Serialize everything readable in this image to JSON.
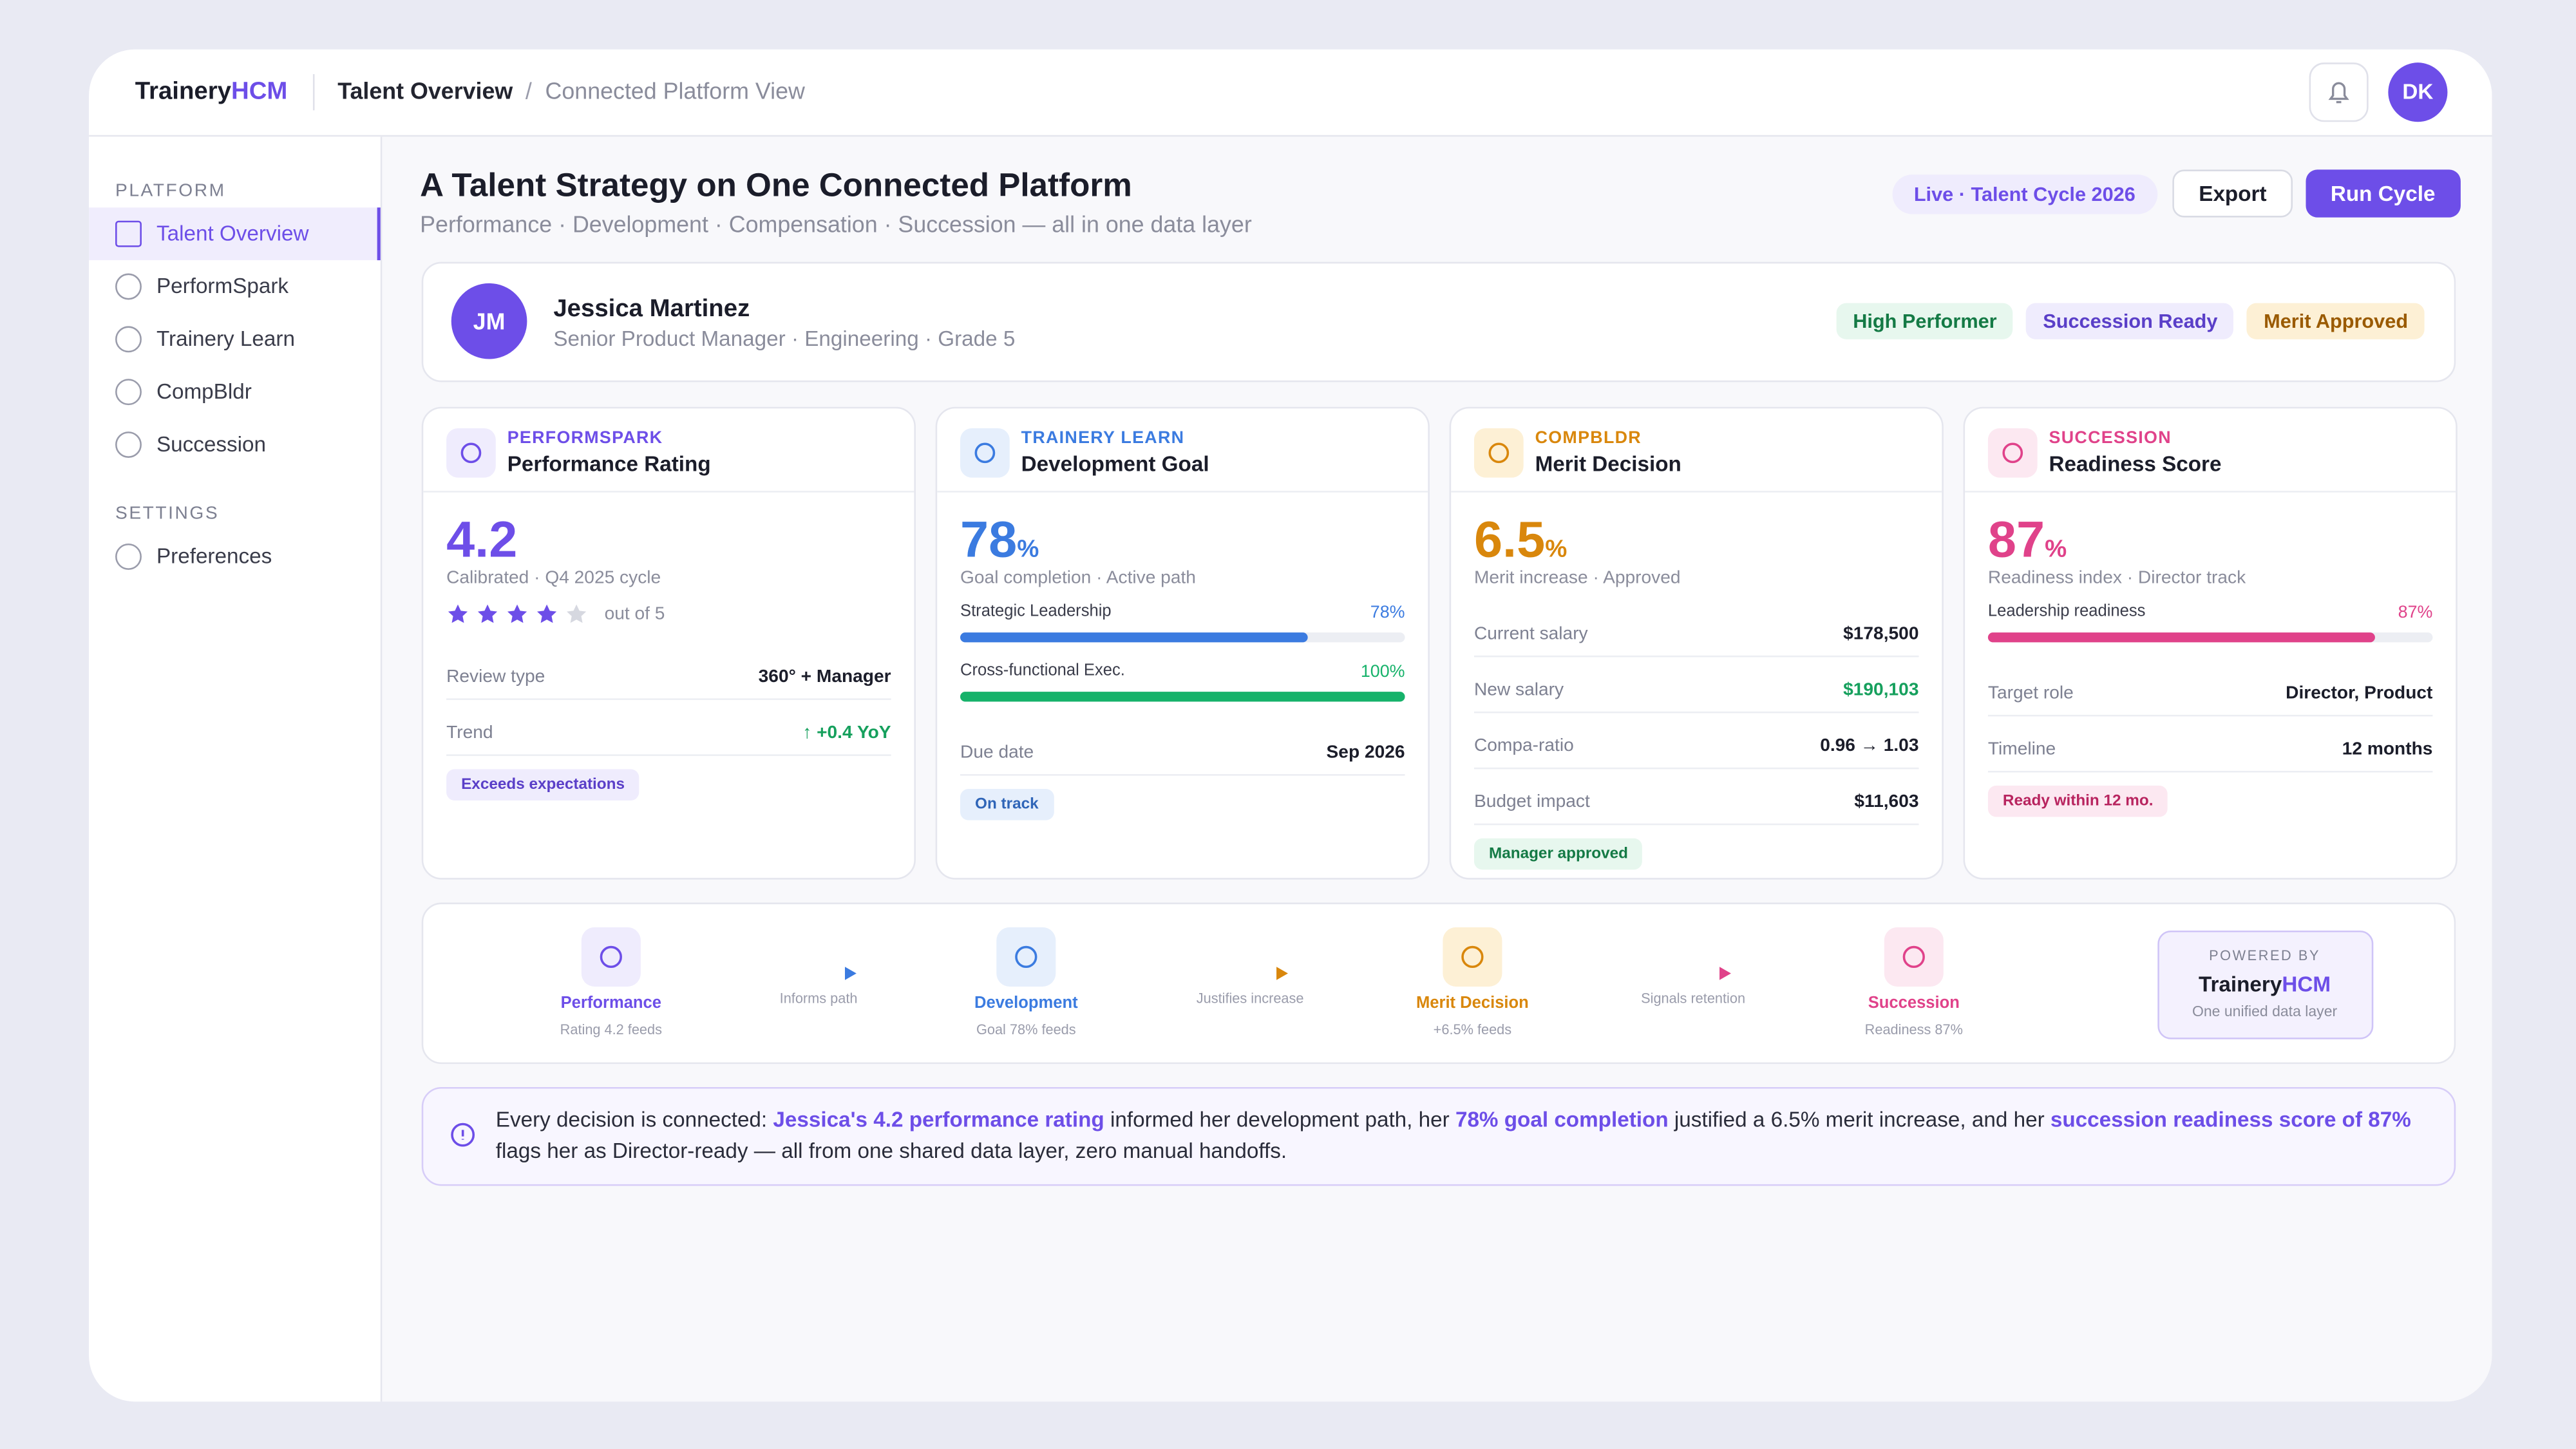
{
  "header": {
    "brand": "Trainery",
    "brand_accent": "HCM",
    "breadcrumb": "Talent Overview",
    "separator": "/",
    "breadcrumb_sub": "Connected Platform View",
    "avatar": "DK"
  },
  "sidebar": {
    "sections": [
      {
        "title": "PLATFORM",
        "items": [
          "Talent Overview",
          "PerformSpark",
          "Trainery Learn",
          "CompBldr",
          "Succession"
        ]
      },
      {
        "title": "SETTINGS",
        "items": [
          "Preferences"
        ]
      }
    ]
  },
  "page": {
    "title": "A Talent Strategy on One Connected Platform",
    "subtitle": "Performance · Development · Compensation · Succession — all in one data layer",
    "badge": "Live · Talent Cycle 2026",
    "buttons": [
      "Export",
      "Run Cycle"
    ]
  },
  "profile": {
    "initials": "JM",
    "name": "Jessica Martinez",
    "role": "Senior Product Manager · Engineering · Grade 5",
    "tags": [
      {
        "label": "High Performer",
        "color": "#147a45",
        "bg": "#e7f7ee"
      },
      {
        "label": "Succession Ready",
        "color": "#5a3fc8",
        "bg": "#efecfd"
      },
      {
        "label": "Merit Approved",
        "color": "#9a5a00",
        "bg": "#fdf0d5"
      }
    ]
  },
  "cards": [
    {
      "module": "PERFORMSPARK",
      "title": "Performance Rating",
      "color": "#6d4ee8",
      "icon_bg": "#efecfd",
      "metric": 4.2,
      "caption": "Calibrated · Q4 2025 cycle",
      "stars": 4,
      "stars_label": "out of 5",
      "rows": [
        {
          "label": "Review type",
          "value": "360° + Manager"
        },
        {
          "label": "Trend",
          "value": "↑ +0.4 YoY",
          "color": "#16a05d"
        }
      ],
      "pill": {
        "label": "Exceeds expectations",
        "color": "#5a3fc8",
        "bg": "#efecfd"
      }
    },
    {
      "module": "TRAINERY LEARN",
      "title": "Development Goal",
      "color": "#3b7be0",
      "icon_bg": "#e6effc",
      "metric": 78,
      "unit": "%",
      "caption": "Goal completion · Active path",
      "bars": [
        {
          "label": "Strategic Leadership",
          "value": 78,
          "value_label": "78%",
          "color": "#3b7be0"
        },
        {
          "label": "Cross-functional Exec.",
          "value": 100,
          "value_label": "100%",
          "color": "#16b26a"
        }
      ],
      "rows": [
        {
          "label": "Due date",
          "value": "Sep 2026"
        }
      ],
      "pill": {
        "label": "On track",
        "color": "#2f65b8",
        "bg": "#e6effc"
      }
    },
    {
      "module": "COMPBLDR",
      "title": "Merit Decision",
      "color": "#d9870c",
      "icon_bg": "#fdf0d5",
      "metric": 6.5,
      "unit": "%",
      "caption": "Merit increase · Approved",
      "rows": [
        {
          "label": "Current salary",
          "value": "$178,500"
        },
        {
          "label": "New salary",
          "value": "$190,103",
          "color": "#16a05d"
        },
        {
          "label": "Compa-ratio",
          "value": "0.96 → 1.03"
        },
        {
          "label": "Budget impact",
          "value": "$11,603"
        }
      ],
      "pill": {
        "label": "Manager approved",
        "color": "#147a45",
        "bg": "#e7f7ee"
      }
    },
    {
      "module": "SUCCESSION",
      "title": "Readiness Score",
      "color": "#e0428a",
      "icon_bg": "#fce8f1",
      "metric": 87,
      "unit": "%",
      "caption": "Readiness index · Director track",
      "bars": [
        {
          "label": "Leadership readiness",
          "value": 87,
          "value_label": "87%",
          "color": "#e0428a"
        }
      ],
      "rows": [
        {
          "label": "Target role",
          "value": "Director, Product"
        },
        {
          "label": "Timeline",
          "value": "12 months"
        }
      ],
      "pill": {
        "label": "Ready within 12 mo.",
        "color": "#b8245f",
        "bg": "#fce8f1"
      }
    }
  ],
  "flow": {
    "nodes": [
      {
        "label": "Performance",
        "sub": "Rating 4.2 feeds",
        "color": "#6d4ee8",
        "bg": "#efecfd"
      },
      {
        "label": "Development",
        "sub": "Goal 78% feeds",
        "color": "#3b7be0",
        "bg": "#e6effc"
      },
      {
        "label": "Merit Decision",
        "sub": "+6.5% feeds",
        "color": "#d9870c",
        "bg": "#fdf0d5"
      },
      {
        "label": "Succession",
        "sub": "Readiness 87%",
        "color": "#e0428a",
        "bg": "#fce8f1"
      }
    ],
    "arrows": [
      {
        "label": "Informs path",
        "from": "#3b7be0",
        "to": "#3b7be0"
      },
      {
        "label": "Justifies increase",
        "from": "#3b7be0",
        "to": "#d9870c"
      },
      {
        "label": "Signals retention",
        "from": "#d9870c",
        "to": "#e0428a"
      }
    ],
    "powered": {
      "caption": "POWERED BY",
      "brand": "Trainery",
      "brand_accent": "HCM",
      "sub": "One unified data layer"
    }
  },
  "callout": {
    "parts": [
      {
        "text": "Every decision is connected: "
      },
      {
        "text": "Jessica's 4.2 performance rating",
        "highlight": true
      },
      {
        "text": " informed her development path, her "
      },
      {
        "text": "78% goal completion",
        "highlight": true
      },
      {
        "text": " justified a 6.5% merit increase, and her "
      },
      {
        "text": "succession readiness score of 87%",
        "highlight": true
      },
      {
        "text": " flags her as Director-ready — all from one shared data layer, zero manual handoffs."
      }
    ]
  }
}
